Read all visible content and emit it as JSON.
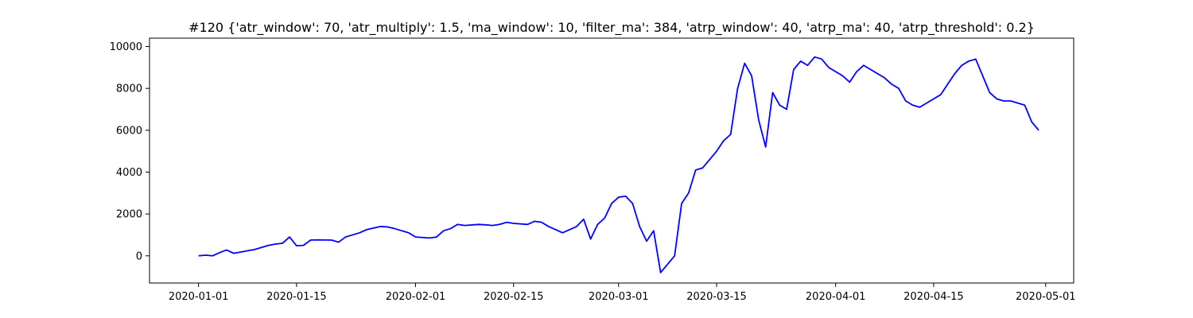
{
  "chart_data": {
    "type": "line",
    "title": "#120 {'atr_window': 70, 'atr_multiply': 1.5, 'ma_window': 10, 'filter_ma': 384, 'atrp_window': 40, 'atrp_ma': 40, 'atrp_threshold': 0.2}",
    "xlabel": "",
    "ylabel": "",
    "x_type": "date",
    "xlim": [
      "2019-12-25",
      "2020-05-05"
    ],
    "ylim": [
      -1300,
      10400
    ],
    "x_ticks": [
      "2020-01-01",
      "2020-01-15",
      "2020-02-01",
      "2020-02-15",
      "2020-03-01",
      "2020-03-15",
      "2020-04-01",
      "2020-04-15",
      "2020-05-01"
    ],
    "y_ticks": [
      0,
      2000,
      4000,
      6000,
      8000,
      10000
    ],
    "grid": false,
    "line_color": "#0000ff",
    "series": [
      {
        "x": [
          "2020-01-01",
          "2020-01-02",
          "2020-01-03",
          "2020-01-04",
          "2020-01-05",
          "2020-01-06",
          "2020-01-09",
          "2020-01-10",
          "2020-01-11",
          "2020-01-12",
          "2020-01-13",
          "2020-01-14",
          "2020-01-15",
          "2020-01-16",
          "2020-01-17",
          "2020-01-18",
          "2020-01-20",
          "2020-01-21",
          "2020-01-22",
          "2020-01-23",
          "2020-01-24",
          "2020-01-25",
          "2020-01-27",
          "2020-01-28",
          "2020-01-29",
          "2020-01-30",
          "2020-01-31",
          "2020-02-01",
          "2020-02-03",
          "2020-02-04",
          "2020-02-05",
          "2020-02-06",
          "2020-02-07",
          "2020-02-08",
          "2020-02-10",
          "2020-02-11",
          "2020-02-12",
          "2020-02-13",
          "2020-02-14",
          "2020-02-15",
          "2020-02-17",
          "2020-02-18",
          "2020-02-19",
          "2020-02-20",
          "2020-02-22",
          "2020-02-24",
          "2020-02-25",
          "2020-02-26",
          "2020-02-27",
          "2020-02-28",
          "2020-02-29",
          "2020-03-01",
          "2020-03-02",
          "2020-03-03",
          "2020-03-04",
          "2020-03-05",
          "2020-03-06",
          "2020-03-07",
          "2020-03-08",
          "2020-03-09",
          "2020-03-10",
          "2020-03-11",
          "2020-03-12",
          "2020-03-13",
          "2020-03-14",
          "2020-03-15",
          "2020-03-16",
          "2020-03-17",
          "2020-03-18",
          "2020-03-19",
          "2020-03-20",
          "2020-03-21",
          "2020-03-22",
          "2020-03-23",
          "2020-03-24",
          "2020-03-25",
          "2020-03-26",
          "2020-03-27",
          "2020-03-28",
          "2020-03-29",
          "2020-03-30",
          "2020-03-31",
          "2020-04-01",
          "2020-04-02",
          "2020-04-03",
          "2020-04-04",
          "2020-04-05",
          "2020-04-06",
          "2020-04-07",
          "2020-04-08",
          "2020-04-09",
          "2020-04-10",
          "2020-04-11",
          "2020-04-12",
          "2020-04-13",
          "2020-04-14",
          "2020-04-15",
          "2020-04-16",
          "2020-04-17",
          "2020-04-18",
          "2020-04-19",
          "2020-04-20",
          "2020-04-21",
          "2020-04-22",
          "2020-04-23",
          "2020-04-24",
          "2020-04-25",
          "2020-04-26",
          "2020-04-27",
          "2020-04-28",
          "2020-04-29",
          "2020-04-30"
        ],
        "y": [
          0,
          30,
          0,
          150,
          280,
          120,
          300,
          400,
          500,
          560,
          600,
          900,
          480,
          500,
          750,
          760,
          750,
          650,
          900,
          1000,
          1100,
          1250,
          1400,
          1380,
          1300,
          1200,
          1100,
          900,
          850,
          900,
          1200,
          1300,
          1500,
          1450,
          1500,
          1480,
          1450,
          1500,
          1600,
          1550,
          1500,
          1650,
          1600,
          1400,
          1100,
          1400,
          1750,
          800,
          1500,
          1800,
          2500,
          2800,
          2850,
          2500,
          1400,
          700,
          1200,
          -800,
          -400,
          0,
          2500,
          3000,
          4100,
          4200,
          4600,
          5000,
          5500,
          5800,
          8000,
          9200,
          8600,
          6500,
          5200,
          7800,
          7200,
          7000,
          8900,
          9300,
          9100,
          9500,
          9400,
          9000,
          8800,
          8600,
          8300,
          8800,
          9100,
          8900,
          8700,
          8500,
          8200,
          8000,
          7400,
          7200,
          7100,
          7300,
          7500,
          7700,
          8200,
          8700,
          9100,
          9300,
          9400,
          8600,
          7800,
          7500,
          7400,
          7400,
          7300,
          7200,
          6400,
          6000
        ]
      }
    ]
  }
}
